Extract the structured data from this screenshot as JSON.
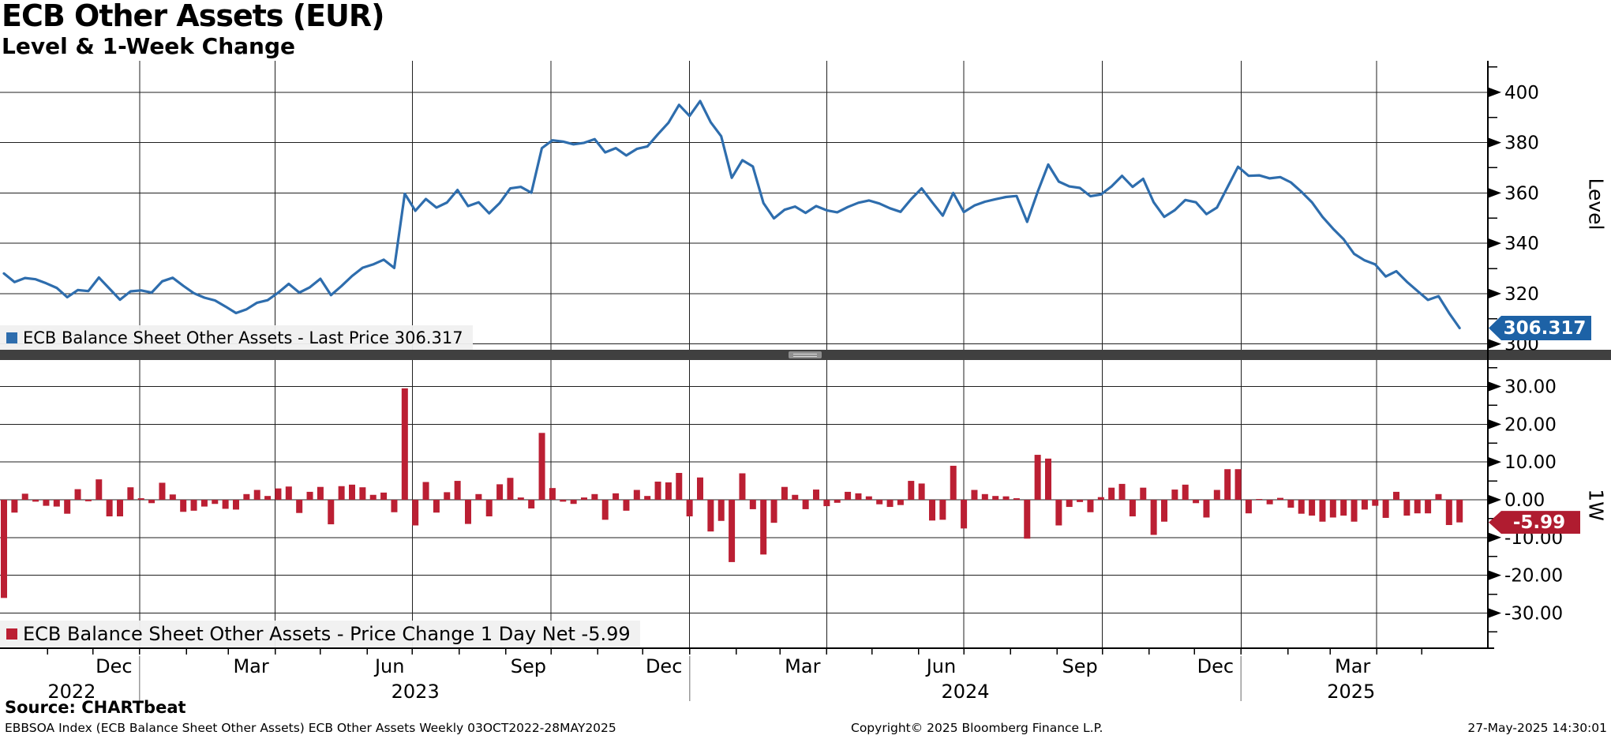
{
  "title": "ECB Other Assets (EUR)",
  "subtitle": "Level & 1-Week Change",
  "source": "Source: CHARTbeat",
  "footer": {
    "description": "EBBSOA Index (ECB Balance Sheet Other Assets) ECB Other Assets  Weekly 03OCT2022-28MAY2025",
    "copyright": "Copyright© 2025 Bloomberg Finance L.P.",
    "timestamp": "27-May-2025 14:30:01"
  },
  "level_panel": {
    "legend_label": "ECB Balance Sheet Other Assets - Last Price 306.317",
    "axis_title": "Level",
    "last_price_tag": "306.317",
    "tick_labels": [
      "400",
      "380",
      "360",
      "340",
      "320",
      "300"
    ],
    "line_color": "#2e6dad",
    "tag_color": "#1d62a6"
  },
  "change_panel": {
    "legend_label": "ECB Balance Sheet Other Assets - Price Change 1 Day Net -5.99",
    "axis_title": "1W",
    "last_change_tag": "-5.99",
    "tick_labels": [
      "30.00",
      "20.00",
      "10.00",
      "0.00",
      "-10.00",
      "-20.00",
      "-30.00"
    ],
    "bar_color": "#bb1f33",
    "tag_color": "#b01c30"
  },
  "chart_data": {
    "type": "line+bar",
    "frequency": "weekly",
    "x_start": "2022-10-03",
    "x_end": "2025-05-28",
    "num_points": 139,
    "domain_days": 968,
    "grid": true,
    "legend_position": "bottom-left of each panel",
    "series": [
      {
        "name": "ECB Balance Sheet Other Assets - Last Price",
        "panel": "Level",
        "type": "line",
        "color": "#2e6dad",
        "ylim": [
          297.7,
          412.5
        ],
        "yticks": [
          400,
          380,
          360,
          340,
          320,
          300
        ],
        "last_value": 306.317,
        "values": [
          328.0,
          324.6,
          326.2,
          325.7,
          324.1,
          322.3,
          318.6,
          321.4,
          321.0,
          326.4,
          322.0,
          317.6,
          320.9,
          321.3,
          320.4,
          324.9,
          326.3,
          323.1,
          320.2,
          318.4,
          317.3,
          314.9,
          312.3,
          313.8,
          316.4,
          317.4,
          320.4,
          323.9,
          320.4,
          322.5,
          325.9,
          319.4,
          323.0,
          327.0,
          330.3,
          331.6,
          333.5,
          330.2,
          359.7,
          352.9,
          357.6,
          354.2,
          356.2,
          361.2,
          354.8,
          356.3,
          351.9,
          356.0,
          361.8,
          362.4,
          360.1,
          377.8,
          380.9,
          380.4,
          379.3,
          379.9,
          381.4,
          376.1,
          377.8,
          374.9,
          377.5,
          378.5,
          383.3,
          387.9,
          395.0,
          390.6,
          396.5,
          388.1,
          382.5,
          366.0,
          373.0,
          370.5,
          356.0,
          349.9,
          353.3,
          354.6,
          352.1,
          354.8,
          353.1,
          352.3,
          354.4,
          356.1,
          357.0,
          355.8,
          353.9,
          352.5,
          357.5,
          361.8,
          356.3,
          351.0,
          360.0,
          352.4,
          355.0,
          356.5,
          357.5,
          358.4,
          358.8,
          348.5,
          360.4,
          371.3,
          364.5,
          362.6,
          362.0,
          358.7,
          359.4,
          362.6,
          366.8,
          362.4,
          365.6,
          356.3,
          350.5,
          353.2,
          357.2,
          356.3,
          351.6,
          354.2,
          362.3,
          370.4,
          366.8,
          367.0,
          365.8,
          366.3,
          364.2,
          360.5,
          356.3,
          350.5,
          345.8,
          341.6,
          335.8,
          333.2,
          331.6,
          326.8,
          328.9,
          324.7,
          321.1,
          317.5,
          319.0,
          312.307,
          306.317
        ]
      },
      {
        "name": "ECB Balance Sheet Other Assets - Price Change 1 Day Net",
        "panel": "1W",
        "type": "bar",
        "color": "#bb1f33",
        "ylim": [
          -39.1,
          37.0
        ],
        "yticks": [
          30,
          20,
          10,
          0,
          -10,
          -20,
          -30
        ],
        "last_value": -5.99,
        "values": [
          -26.0,
          -3.4,
          1.6,
          -0.5,
          -1.6,
          -1.8,
          -3.7,
          2.8,
          -0.4,
          5.4,
          -4.4,
          -4.4,
          3.3,
          0.4,
          -0.9,
          4.5,
          1.4,
          -3.2,
          -2.9,
          -1.8,
          -1.1,
          -2.4,
          -2.6,
          1.5,
          2.6,
          1.0,
          3.0,
          3.5,
          -3.5,
          2.1,
          3.4,
          -6.5,
          3.6,
          4.0,
          3.3,
          1.3,
          1.9,
          -3.3,
          29.5,
          -6.8,
          4.7,
          -3.4,
          2.0,
          5.0,
          -6.4,
          1.5,
          -4.4,
          4.1,
          5.8,
          0.6,
          -2.3,
          17.7,
          3.1,
          -0.5,
          -1.1,
          0.6,
          1.5,
          -5.3,
          1.7,
          -2.9,
          2.6,
          1.0,
          4.8,
          4.6,
          7.1,
          -4.4,
          5.9,
          -8.4,
          -5.6,
          -16.5,
          7.0,
          -2.5,
          -14.5,
          -6.1,
          3.4,
          1.3,
          -2.5,
          2.7,
          -1.7,
          -0.8,
          2.1,
          1.7,
          0.9,
          -1.2,
          -1.9,
          -1.4,
          5.0,
          4.3,
          -5.5,
          -5.3,
          9.0,
          -7.6,
          2.6,
          1.5,
          1.0,
          0.9,
          0.4,
          -10.3,
          11.9,
          10.9,
          -6.8,
          -1.9,
          -0.6,
          -3.3,
          0.7,
          3.2,
          4.2,
          -4.4,
          3.2,
          -9.3,
          -5.8,
          2.7,
          4.0,
          -0.9,
          -4.7,
          2.6,
          8.1,
          8.1,
          -3.6,
          0.2,
          -1.2,
          0.5,
          -2.1,
          -3.7,
          -4.2,
          -5.8,
          -4.7,
          -4.2,
          -5.8,
          -2.6,
          -1.6,
          -4.8,
          2.1,
          -4.2,
          -3.6,
          -3.6,
          1.5,
          -6.69,
          -5.99
        ]
      }
    ],
    "x_axis": {
      "quarter_gridline_days": [
        90,
        180,
        271,
        363,
        455,
        546,
        637,
        729,
        821,
        911
      ],
      "month_tick_days": [
        29,
        59,
        90,
        121,
        149,
        180,
        210,
        241,
        271,
        302,
        333,
        363,
        394,
        424,
        455,
        486,
        515,
        546,
        576,
        607,
        637,
        668,
        699,
        729,
        760,
        790,
        821,
        852,
        880,
        911,
        941
      ],
      "month_labels": [
        {
          "text": "Dec",
          "day": 73
        },
        {
          "text": "Mar",
          "day": 164
        },
        {
          "text": "Jun",
          "day": 256
        },
        {
          "text": "Sep",
          "day": 348
        },
        {
          "text": "Dec",
          "day": 438
        },
        {
          "text": "Mar",
          "day": 530
        },
        {
          "text": "Jun",
          "day": 622
        },
        {
          "text": "Sep",
          "day": 714
        },
        {
          "text": "Dec",
          "day": 804
        },
        {
          "text": "Mar",
          "day": 895
        }
      ],
      "year_labels": [
        {
          "text": "2022",
          "day": 45
        },
        {
          "text": "2023",
          "day": 273
        },
        {
          "text": "2024",
          "day": 638
        },
        {
          "text": "2025",
          "day": 894
        }
      ],
      "year_separator_days": [
        90,
        455,
        821
      ]
    }
  }
}
